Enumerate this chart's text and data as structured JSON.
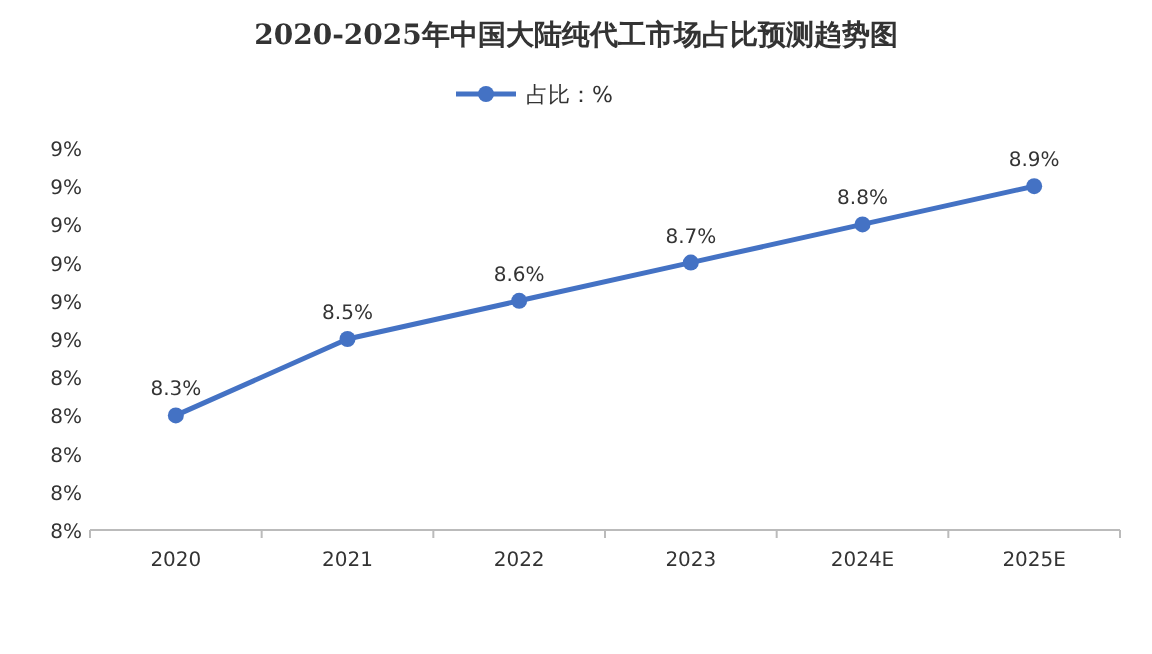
{
  "chart_data": {
    "type": "line",
    "title": "2020-2025年中国大陆纯代工市场占比预测趋势图",
    "categories": [
      "2020",
      "2021",
      "2022",
      "2023",
      "2024E",
      "2025E"
    ],
    "series": [
      {
        "name": "占比：%",
        "color": "#4472c4",
        "values": [
          8.3,
          8.5,
          8.6,
          8.7,
          8.8,
          8.9
        ]
      }
    ],
    "ylim": [
      8.0,
      9.0
    ],
    "yticks": [
      {
        "value": 8.0,
        "label": "8%"
      },
      {
        "value": 8.1,
        "label": "8%"
      },
      {
        "value": 8.2,
        "label": "8%"
      },
      {
        "value": 8.3,
        "label": "8%"
      },
      {
        "value": 8.4,
        "label": "8%"
      },
      {
        "value": 8.5,
        "label": "9%"
      },
      {
        "value": 8.6,
        "label": "9%"
      },
      {
        "value": 8.7,
        "label": "9%"
      },
      {
        "value": 8.8,
        "label": "9%"
      },
      {
        "value": 8.9,
        "label": "9%"
      },
      {
        "value": 9.0,
        "label": "9%"
      }
    ],
    "value_labels": [
      "8.3%",
      "8.5%",
      "8.6%",
      "8.7%",
      "8.8%",
      "8.9%"
    ],
    "marker": "circle",
    "line_style": "solid",
    "legend": "top",
    "grid": false
  }
}
